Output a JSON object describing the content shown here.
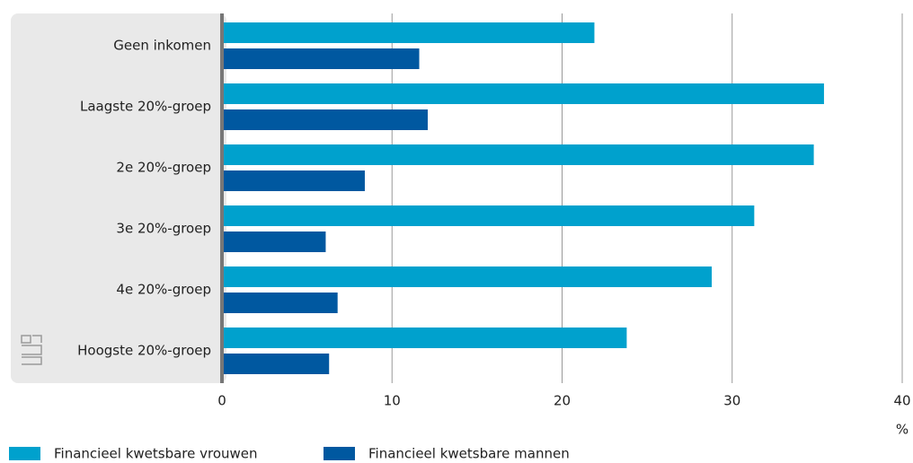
{
  "chart_data": {
    "type": "hbar",
    "categories": [
      "Geen inkomen",
      "Laagste 20%-groep",
      "2e 20%-groep",
      "3e 20%-groep",
      "4e 20%-groep",
      "Hoogste 20%-groep"
    ],
    "series": [
      {
        "name": "Financieel kwetsbare vrouwen",
        "color": "#00a1cd",
        "values": [
          21.9,
          35.4,
          34.8,
          31.3,
          28.8,
          23.8
        ]
      },
      {
        "name": "Financieel kwetsbare mannen",
        "color": "#0058a0",
        "values": [
          11.6,
          12.1,
          8.4,
          6.1,
          6.8,
          6.3
        ]
      }
    ],
    "xlim": [
      0,
      40
    ],
    "xticks": [
      0,
      10,
      20,
      30,
      40
    ],
    "x_label": "%",
    "grid": true
  }
}
